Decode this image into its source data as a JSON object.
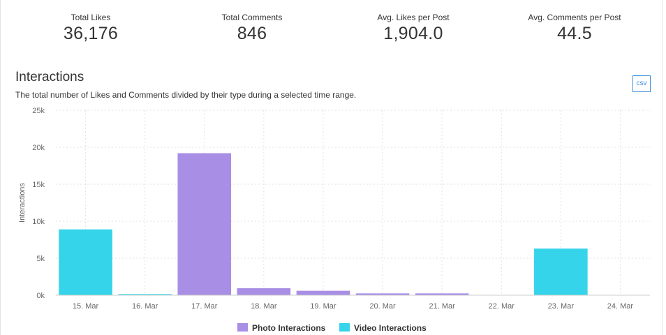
{
  "stats": [
    {
      "label": "Total Likes",
      "value": "36,176"
    },
    {
      "label": "Total Comments",
      "value": "846"
    },
    {
      "label": "Avg. Likes per Post",
      "value": "1,904.0"
    },
    {
      "label": "Avg. Comments per Post",
      "value": "44.5"
    }
  ],
  "section": {
    "title": "Interactions",
    "subtitle": "The total number of Likes and Comments divided by their type during a selected time range.",
    "csv_label": "csv"
  },
  "colors": {
    "photo": "#a98ee6",
    "video": "#36d4ea",
    "grid": "#e2e2e2",
    "axis": "#cccccc"
  },
  "chart_data": {
    "type": "bar",
    "ylabel": "Interactions",
    "xlabel": "",
    "ylim": [
      0,
      25000
    ],
    "yticks": [
      0,
      5000,
      10000,
      15000,
      20000,
      25000
    ],
    "ytick_labels": [
      "0k",
      "5k",
      "10k",
      "15k",
      "20k",
      "25k"
    ],
    "categories": [
      "15. Mar",
      "16. Mar",
      "17. Mar",
      "18. Mar",
      "19. Mar",
      "20. Mar",
      "21. Mar",
      "22. Mar",
      "23. Mar",
      "24. Mar"
    ],
    "series": [
      {
        "name": "Photo Interactions",
        "values": [
          0,
          0,
          19200,
          950,
          600,
          250,
          250,
          0,
          0,
          0
        ]
      },
      {
        "name": "Video Interactions",
        "values": [
          8900,
          150,
          0,
          0,
          0,
          0,
          0,
          0,
          6300,
          0
        ]
      }
    ],
    "grid": true,
    "legend": "bottom-center"
  }
}
